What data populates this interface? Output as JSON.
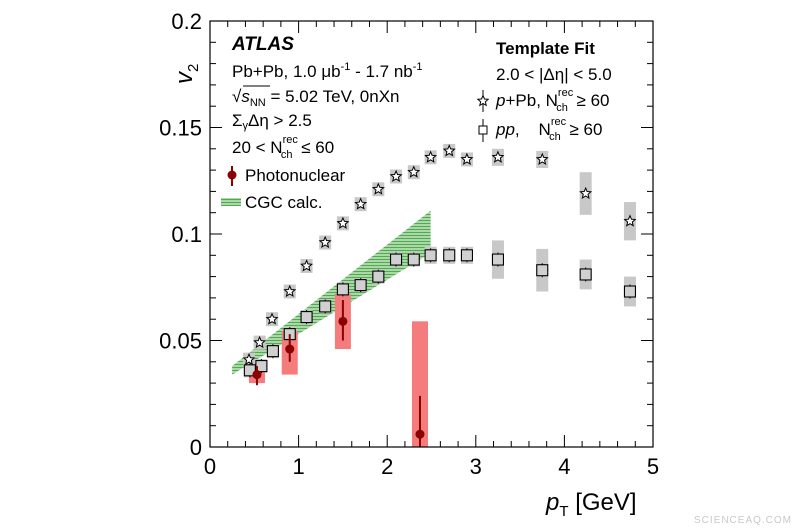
{
  "chart_data": {
    "type": "scatter",
    "xlabel_main": "p",
    "xlabel_sub": "T",
    "xlabel_unit": " [GeV]",
    "ylabel_main": "v",
    "ylabel_sub": "2",
    "xlim": [
      0,
      5
    ],
    "ylim": [
      0,
      0.2
    ],
    "xticks": [
      "0",
      "1",
      "2",
      "3",
      "4",
      "5"
    ],
    "yticks": [
      "0",
      "0.05",
      "0.1",
      "0.15",
      "0.2"
    ],
    "annotations_left": {
      "experiment": "ATLAS",
      "lumi": "Pb+Pb, 1.0 μb",
      "lumi_exp1": "-1",
      "lumi_mid": " - 1.7 nb",
      "lumi_exp2": "-1",
      "energy_sqrt": "√",
      "energy_s": "s",
      "energy_sub": "NN",
      "energy_rest": " = 5.02 TeV, 0nXn",
      "gap_cut": "Σ",
      "gap_sub": "γ",
      "gap_rest": "Δη > 2.5",
      "mult_pre": "20 < N",
      "mult_sup": "rec",
      "mult_sub": "ch",
      "mult_post": " ≤ 60"
    },
    "annotations_right": {
      "method": "Template Fit",
      "eta_gap": "2.0 < |Δη| < 5.0"
    },
    "legend": {
      "photonuclear": "Photonuclear",
      "cgc": "CGC calc.",
      "ppb_pre": "p",
      "ppb_mid": "+Pb, N",
      "ppb_sup": "rec",
      "ppb_sub": "ch",
      "ppb_post": " ≥ 60",
      "pp_pre": "pp",
      "pp_mid": ",    N",
      "pp_sup": "rec",
      "pp_sub": "ch",
      "pp_post": " ≥ 60"
    },
    "series": [
      {
        "name": "p+Pb, Nch rec >= 60",
        "marker": "open-star",
        "x": [
          0.44,
          0.56,
          0.7,
          0.9,
          1.09,
          1.3,
          1.5,
          1.7,
          1.9,
          2.1,
          2.3,
          2.49,
          2.7,
          2.9,
          3.25,
          3.75,
          4.24,
          4.74
        ],
        "y": [
          0.041,
          0.049,
          0.06,
          0.073,
          0.085,
          0.096,
          0.105,
          0.114,
          0.121,
          0.127,
          0.129,
          0.136,
          0.139,
          0.135,
          0.136,
          0.135,
          0.119,
          0.106
        ],
        "sys": [
          0.001,
          0.001,
          0.001,
          0.002,
          0.002,
          0.002,
          0.002,
          0.002,
          0.003,
          0.003,
          0.003,
          0.003,
          0.003,
          0.003,
          0.004,
          0.004,
          0.01,
          0.009
        ]
      },
      {
        "name": "pp, Nch rec >= 60",
        "marker": "open-square",
        "x": [
          0.45,
          0.58,
          0.71,
          0.9,
          1.09,
          1.3,
          1.5,
          1.7,
          1.9,
          2.1,
          2.3,
          2.49,
          2.7,
          2.9,
          3.25,
          3.75,
          4.24,
          4.74
        ],
        "y": [
          0.036,
          0.038,
          0.045,
          0.053,
          0.061,
          0.066,
          0.074,
          0.076,
          0.08,
          0.088,
          0.088,
          0.09,
          0.09,
          0.09,
          0.088,
          0.083,
          0.081,
          0.073
        ],
        "sys": [
          0.001,
          0.001,
          0.001,
          0.002,
          0.002,
          0.002,
          0.002,
          0.002,
          0.002,
          0.003,
          0.003,
          0.004,
          0.004,
          0.004,
          0.009,
          0.01,
          0.007,
          0.007
        ]
      },
      {
        "name": "Photonuclear",
        "marker": "filled-circle",
        "color": "#8b0000",
        "sys_color": "#f47c7c",
        "x": [
          0.53,
          0.9,
          1.5,
          2.37
        ],
        "y": [
          0.034,
          0.046,
          0.059,
          0.006
        ],
        "stat_low": [
          0.029,
          0.04,
          0.05,
          0.0
        ],
        "stat_high": [
          0.038,
          0.053,
          0.069,
          0.024
        ],
        "sys_low": [
          0.03,
          0.034,
          0.046,
          0.0
        ],
        "sys_high": [
          0.038,
          0.0545,
          0.072,
          0.059
        ]
      }
    ],
    "cgc_band": {
      "color": "#4caf50",
      "x": [
        0.25,
        2.49
      ],
      "low": [
        0.034,
        0.091
      ],
      "high": [
        0.038,
        0.111
      ]
    }
  },
  "watermark": "SCIENCEAQ.COM"
}
